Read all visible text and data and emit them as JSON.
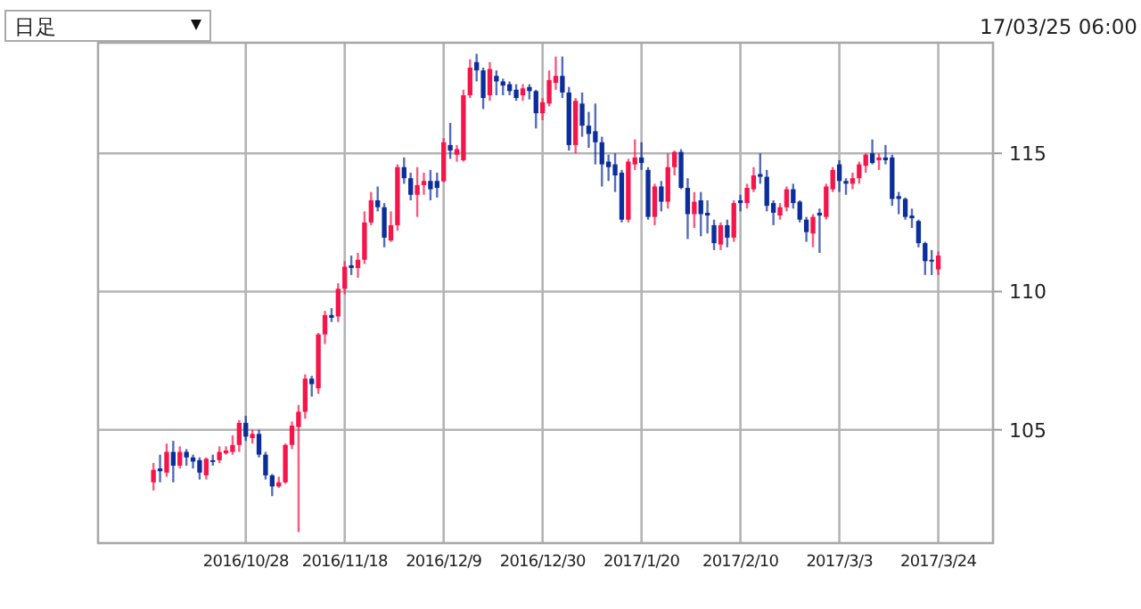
{
  "chart_data": {
    "type": "candlestick",
    "annotations": [
      "日足",
      "17/03/25 06:00"
    ],
    "categories": [
      null,
      null,
      null,
      null,
      null,
      null,
      null,
      null,
      null,
      null,
      null,
      null,
      null,
      null,
      "2016/10/28",
      null,
      null,
      null,
      null,
      null,
      null,
      null,
      null,
      null,
      null,
      null,
      null,
      null,
      null,
      "2016/11/18",
      null,
      null,
      null,
      null,
      null,
      null,
      null,
      null,
      null,
      null,
      null,
      null,
      null,
      null,
      "2016/12/9",
      null,
      null,
      null,
      null,
      null,
      null,
      null,
      null,
      null,
      null,
      null,
      null,
      null,
      null,
      "2016/12/30",
      null,
      null,
      null,
      null,
      null,
      null,
      null,
      null,
      null,
      null,
      null,
      null,
      null,
      null,
      "2017/1/20",
      null,
      null,
      null,
      null,
      null,
      null,
      null,
      null,
      null,
      null,
      null,
      null,
      null,
      null,
      "2017/2/10",
      null,
      null,
      null,
      null,
      null,
      null,
      null,
      null,
      null,
      null,
      null,
      null,
      null,
      null,
      "2017/3/3",
      null,
      null,
      null,
      null,
      null,
      null,
      null,
      null,
      null,
      null,
      null,
      null,
      null,
      null,
      "2017/3/24"
    ],
    "ohlc": [
      [
        103.1,
        103.8,
        102.8,
        103.55
      ],
      [
        103.6,
        104.1,
        103.1,
        103.5
      ],
      [
        103.45,
        104.5,
        103.3,
        104.2
      ],
      [
        104.2,
        104.6,
        103.1,
        103.7
      ],
      [
        103.7,
        104.4,
        103.6,
        104.2
      ],
      [
        104.2,
        104.3,
        103.7,
        104.0
      ],
      [
        104.0,
        104.1,
        103.6,
        103.85
      ],
      [
        103.9,
        104.0,
        103.2,
        103.45
      ],
      [
        103.35,
        104.0,
        103.2,
        103.95
      ],
      [
        103.9,
        104.1,
        103.7,
        103.85
      ],
      [
        103.9,
        104.4,
        103.8,
        104.2
      ],
      [
        104.15,
        104.4,
        104.1,
        104.25
      ],
      [
        104.2,
        104.8,
        104.1,
        104.45
      ],
      [
        104.45,
        105.35,
        104.2,
        105.25
      ],
      [
        105.25,
        105.5,
        104.6,
        104.75
      ],
      [
        104.7,
        105.0,
        104.5,
        104.85
      ],
      [
        104.85,
        105.0,
        104.0,
        104.1
      ],
      [
        104.1,
        104.2,
        103.2,
        103.35
      ],
      [
        103.35,
        103.4,
        102.6,
        102.95
      ],
      [
        102.95,
        103.3,
        102.9,
        103.1
      ],
      [
        103.1,
        104.5,
        103.05,
        104.45
      ],
      [
        104.45,
        105.3,
        104.3,
        105.15
      ],
      [
        105.1,
        105.9,
        101.3,
        105.65
      ],
      [
        105.65,
        107.0,
        105.4,
        106.85
      ],
      [
        106.85,
        106.95,
        106.2,
        106.65
      ],
      [
        106.5,
        108.5,
        106.3,
        108.45
      ],
      [
        108.45,
        109.3,
        108.1,
        109.15
      ],
      [
        109.15,
        109.4,
        108.9,
        109.05
      ],
      [
        109.1,
        110.3,
        108.9,
        110.1
      ],
      [
        110.1,
        111.1,
        109.9,
        110.9
      ],
      [
        110.95,
        111.3,
        110.6,
        110.85
      ],
      [
        110.85,
        111.4,
        110.5,
        111.15
      ],
      [
        111.15,
        112.9,
        111.0,
        112.5
      ],
      [
        112.5,
        113.6,
        112.4,
        113.3
      ],
      [
        113.3,
        113.8,
        112.9,
        113.05
      ],
      [
        113.05,
        113.2,
        111.6,
        111.95
      ],
      [
        111.85,
        112.9,
        111.8,
        112.4
      ],
      [
        112.4,
        114.6,
        112.2,
        114.5
      ],
      [
        114.5,
        114.85,
        113.9,
        114.1
      ],
      [
        114.1,
        114.3,
        113.3,
        113.5
      ],
      [
        113.5,
        114.5,
        112.7,
        113.85
      ],
      [
        113.85,
        114.3,
        113.5,
        114.0
      ],
      [
        114.0,
        114.4,
        113.3,
        113.7
      ],
      [
        114.0,
        114.3,
        113.4,
        113.75
      ],
      [
        113.99,
        115.55,
        113.95,
        115.4
      ],
      [
        115.3,
        116.1,
        114.8,
        115.1
      ],
      [
        114.95,
        115.3,
        114.7,
        115.15
      ],
      [
        114.75,
        117.3,
        114.7,
        117.1
      ],
      [
        117.1,
        118.4,
        117.0,
        118.1
      ],
      [
        118.3,
        118.6,
        117.6,
        118.0
      ],
      [
        118.0,
        118.1,
        116.6,
        117.0
      ],
      [
        117.1,
        118.3,
        116.9,
        118.05
      ],
      [
        117.8,
        118.0,
        117.1,
        117.6
      ],
      [
        117.6,
        117.7,
        117.1,
        117.45
      ],
      [
        117.5,
        117.6,
        117.1,
        117.25
      ],
      [
        117.3,
        117.5,
        116.9,
        117.0
      ],
      [
        117.1,
        117.5,
        116.9,
        117.35
      ],
      [
        117.4,
        117.5,
        116.95,
        117.25
      ],
      [
        117.25,
        117.3,
        115.9,
        116.45
      ],
      [
        116.45,
        117.0,
        116.2,
        116.85
      ],
      [
        116.8,
        118.0,
        116.7,
        117.65
      ],
      [
        117.55,
        118.5,
        117.3,
        117.8
      ],
      [
        117.8,
        118.5,
        117.0,
        117.2
      ],
      [
        117.2,
        117.4,
        115.1,
        115.3
      ],
      [
        115.3,
        117.0,
        115.0,
        116.9
      ],
      [
        116.8,
        117.2,
        115.6,
        116.0
      ],
      [
        116.0,
        116.5,
        115.2,
        115.7
      ],
      [
        115.8,
        116.8,
        114.6,
        115.4
      ],
      [
        115.4,
        115.6,
        113.8,
        114.6
      ],
      [
        114.7,
        114.95,
        114.0,
        114.5
      ],
      [
        114.6,
        115.0,
        113.6,
        114.2
      ],
      [
        114.3,
        114.4,
        112.5,
        112.6
      ],
      [
        112.6,
        114.8,
        112.5,
        114.7
      ],
      [
        114.6,
        115.5,
        114.4,
        114.85
      ],
      [
        114.85,
        115.4,
        114.4,
        114.65
      ],
      [
        114.4,
        114.5,
        112.6,
        112.7
      ],
      [
        112.7,
        113.9,
        112.4,
        113.8
      ],
      [
        113.8,
        114.0,
        112.9,
        113.25
      ],
      [
        113.25,
        115.0,
        113.0,
        114.5
      ],
      [
        114.5,
        115.1,
        114.2,
        115.05
      ],
      [
        115.05,
        115.15,
        113.7,
        113.75
      ],
      [
        113.75,
        114.1,
        111.9,
        112.8
      ],
      [
        112.8,
        113.6,
        112.3,
        113.25
      ],
      [
        113.3,
        113.6,
        112.0,
        112.8
      ],
      [
        112.85,
        113.3,
        112.1,
        112.75
      ],
      [
        112.4,
        112.6,
        111.5,
        111.75
      ],
      [
        111.7,
        112.5,
        111.5,
        112.4
      ],
      [
        112.4,
        112.6,
        111.6,
        111.95
      ],
      [
        111.95,
        113.3,
        111.8,
        113.2
      ],
      [
        113.3,
        113.5,
        112.9,
        113.2
      ],
      [
        113.2,
        113.9,
        113.0,
        113.75
      ],
      [
        113.7,
        114.5,
        113.6,
        114.2
      ],
      [
        114.25,
        115.0,
        113.9,
        114.15
      ],
      [
        114.15,
        114.4,
        112.9,
        113.1
      ],
      [
        113.2,
        113.3,
        112.4,
        112.85
      ],
      [
        112.75,
        113.2,
        112.6,
        113.05
      ],
      [
        113.05,
        113.8,
        112.9,
        113.7
      ],
      [
        113.7,
        113.9,
        113.0,
        113.2
      ],
      [
        113.25,
        113.3,
        112.5,
        112.6
      ],
      [
        112.6,
        112.7,
        111.8,
        112.15
      ],
      [
        112.1,
        112.8,
        111.6,
        112.7
      ],
      [
        112.85,
        113.0,
        111.4,
        112.75
      ],
      [
        112.7,
        113.9,
        112.6,
        113.8
      ],
      [
        113.7,
        114.5,
        113.6,
        114.4
      ],
      [
        114.6,
        114.75,
        113.6,
        114.0
      ],
      [
        114.0,
        114.1,
        113.5,
        113.9
      ],
      [
        113.9,
        114.3,
        113.7,
        114.1
      ],
      [
        114.1,
        114.7,
        113.9,
        114.6
      ],
      [
        114.55,
        115.0,
        114.3,
        114.95
      ],
      [
        115.0,
        115.5,
        114.6,
        114.65
      ],
      [
        114.75,
        115.0,
        114.4,
        114.85
      ],
      [
        114.85,
        115.3,
        114.6,
        114.75
      ],
      [
        114.85,
        114.95,
        113.1,
        113.35
      ],
      [
        113.45,
        113.6,
        112.8,
        113.35
      ],
      [
        113.35,
        113.4,
        112.6,
        112.7
      ],
      [
        112.75,
        113.0,
        112.3,
        112.65
      ],
      [
        112.55,
        112.6,
        111.6,
        111.75
      ],
      [
        111.75,
        111.8,
        110.6,
        111.1
      ],
      [
        111.15,
        111.5,
        110.6,
        111.1
      ],
      [
        110.8,
        111.45,
        110.6,
        111.3
      ]
    ],
    "colors": [
      "#f5154a",
      "#0c2e9b",
      "#f5154a",
      "#0c2e9b",
      "#f5154a",
      "#0c2e9b",
      "#0c2e9b",
      "#0c2e9b",
      "#f5154a",
      "#0c2e9b",
      "#f5154a",
      "#f5154a",
      "#f5154a",
      "#f5154a",
      "#0c2e9b",
      "#f5154a",
      "#0c2e9b",
      "#0c2e9b",
      "#0c2e9b",
      "#f5154a",
      "#f5154a",
      "#f5154a",
      "#f5154a",
      "#f5154a",
      "#0c2e9b",
      "#f5154a",
      "#f5154a",
      "#0c2e9b",
      "#f5154a",
      "#f5154a",
      "#0c2e9b",
      "#f5154a",
      "#f5154a",
      "#f5154a",
      "#0c2e9b",
      "#0c2e9b",
      "#f5154a",
      "#f5154a",
      "#0c2e9b",
      "#0c2e9b",
      "#f5154a",
      "#f5154a",
      "#0c2e9b",
      "#0c2e9b",
      "#f5154a",
      "#0c2e9b",
      "#f5154a",
      "#f5154a",
      "#f5154a",
      "#0c2e9b",
      "#0c2e9b",
      "#f5154a",
      "#0c2e9b",
      "#0c2e9b",
      "#0c2e9b",
      "#0c2e9b",
      "#f5154a",
      "#0c2e9b",
      "#0c2e9b",
      "#f5154a",
      "#f5154a",
      "#f5154a",
      "#0c2e9b",
      "#0c2e9b",
      "#f5154a",
      "#0c2e9b",
      "#0c2e9b",
      "#0c2e9b",
      "#0c2e9b",
      "#0c2e9b",
      "#0c2e9b",
      "#0c2e9b",
      "#f5154a",
      "#f5154a",
      "#0c2e9b",
      "#0c2e9b",
      "#f5154a",
      "#0c2e9b",
      "#f5154a",
      "#f5154a",
      "#0c2e9b",
      "#0c2e9b",
      "#f5154a",
      "#0c2e9b",
      "#0c2e9b",
      "#0c2e9b",
      "#f5154a",
      "#0c2e9b",
      "#f5154a",
      "#0c2e9b",
      "#f5154a",
      "#f5154a",
      "#0c2e9b",
      "#0c2e9b",
      "#0c2e9b",
      "#f5154a",
      "#f5154a",
      "#0c2e9b",
      "#0c2e9b",
      "#0c2e9b",
      "#f5154a",
      "#0c2e9b",
      "#f5154a",
      "#f5154a",
      "#0c2e9b",
      "#0c2e9b",
      "#f5154a",
      "#f5154a",
      "#f5154a",
      "#0c2e9b",
      "#f5154a",
      "#0c2e9b",
      "#0c2e9b",
      "#0c2e9b",
      "#0c2e9b",
      "#0c2e9b",
      "#0c2e9b",
      "#0c2e9b",
      "#0c2e9b",
      "#f5154a"
    ],
    "ylim": [
      100.9,
      119.0
    ],
    "yticks": [
      105,
      110,
      115
    ],
    "grid": true
  }
}
